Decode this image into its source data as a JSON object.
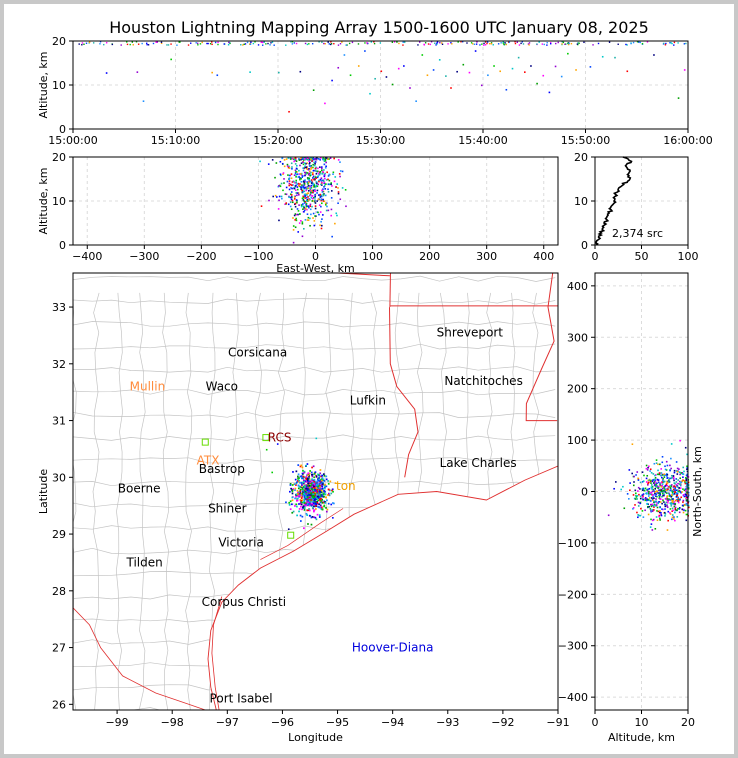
{
  "title": "Houston Lightning Mapping Array 1500-1600 UTC January 08, 2025",
  "chart_data": [
    {
      "panel": "time-altitude",
      "type": "scatter",
      "xlabel": "",
      "ylabel": "Altitude, km",
      "x_ticks": [
        "15:00:00",
        "15:10:00",
        "15:20:00",
        "15:30:00",
        "15:40:00",
        "15:50:00",
        "16:00:00"
      ],
      "x_range_minutes": [
        0,
        60
      ],
      "ylim": [
        0,
        20
      ],
      "y_ticks": [
        0,
        10,
        20
      ],
      "grid": true,
      "points": [
        {
          "t": 3.2,
          "alt": 12.9
        },
        {
          "t": 6.2,
          "alt": 13.1
        },
        {
          "t": 6.8,
          "alt": 6.5
        },
        {
          "t": 9.5,
          "alt": 16.0
        },
        {
          "t": 13.5,
          "alt": 13.0
        },
        {
          "t": 14.0,
          "alt": 12.4
        },
        {
          "t": 17.2,
          "alt": 13.1
        },
        {
          "t": 20.0,
          "alt": 13.0
        },
        {
          "t": 21.0,
          "alt": 4.1
        },
        {
          "t": 22.1,
          "alt": 13.2
        },
        {
          "t": 23.4,
          "alt": 9.0
        },
        {
          "t": 24.5,
          "alt": 6.0
        },
        {
          "t": 25.2,
          "alt": 11.2
        },
        {
          "t": 25.8,
          "alt": 14.1
        },
        {
          "t": 26.4,
          "alt": 17.0
        },
        {
          "t": 27.0,
          "alt": 12.4
        },
        {
          "t": 27.8,
          "alt": 14.5
        },
        {
          "t": 28.4,
          "alt": 17.9
        },
        {
          "t": 28.9,
          "alt": 8.2
        },
        {
          "t": 29.4,
          "alt": 11.6
        },
        {
          "t": 30.0,
          "alt": 13.3
        },
        {
          "t": 30.5,
          "alt": 12.0
        },
        {
          "t": 31.1,
          "alt": 10.3
        },
        {
          "t": 31.7,
          "alt": 13.9
        },
        {
          "t": 32.2,
          "alt": 14.5
        },
        {
          "t": 32.8,
          "alt": 9.5
        },
        {
          "t": 33.4,
          "alt": 6.5
        },
        {
          "t": 34.0,
          "alt": 17.0
        },
        {
          "t": 34.5,
          "alt": 12.4
        },
        {
          "t": 35.1,
          "alt": 13.6
        },
        {
          "t": 35.7,
          "alt": 15.9
        },
        {
          "t": 36.3,
          "alt": 12.2
        },
        {
          "t": 36.8,
          "alt": 9.5
        },
        {
          "t": 37.4,
          "alt": 13.2
        },
        {
          "t": 38.0,
          "alt": 14.8
        },
        {
          "t": 38.6,
          "alt": 13.0
        },
        {
          "t": 39.2,
          "alt": 17.9
        },
        {
          "t": 39.8,
          "alt": 10.1
        },
        {
          "t": 40.4,
          "alt": 12.4
        },
        {
          "t": 41.0,
          "alt": 14.5
        },
        {
          "t": 41.6,
          "alt": 13.3
        },
        {
          "t": 42.2,
          "alt": 9.1
        },
        {
          "t": 42.8,
          "alt": 13.9
        },
        {
          "t": 43.4,
          "alt": 16.4
        },
        {
          "t": 44.0,
          "alt": 13.1
        },
        {
          "t": 44.6,
          "alt": 14.5
        },
        {
          "t": 45.2,
          "alt": 10.5
        },
        {
          "t": 45.8,
          "alt": 12.3
        },
        {
          "t": 46.4,
          "alt": 8.5
        },
        {
          "t": 47.0,
          "alt": 14.4
        },
        {
          "t": 47.6,
          "alt": 12.1
        },
        {
          "t": 48.2,
          "alt": 17.3
        },
        {
          "t": 49.0,
          "alt": 13.6
        },
        {
          "t": 50.4,
          "alt": 14.3
        },
        {
          "t": 51.6,
          "alt": 16.6
        },
        {
          "t": 52.8,
          "alt": 16.4
        },
        {
          "t": 54.0,
          "alt": 13.3
        },
        {
          "t": 56.6,
          "alt": 17.0
        },
        {
          "t": 59.0,
          "alt": 7.2
        },
        {
          "t": 59.6,
          "alt": 13.6
        }
      ]
    },
    {
      "panel": "east-west-altitude",
      "type": "scatter",
      "xlabel": "East-West, km",
      "ylabel": "Altitude, km",
      "xlim": [
        -425,
        425
      ],
      "x_ticks": [
        -400,
        -300,
        -200,
        -100,
        0,
        100,
        200,
        300,
        400
      ],
      "ylim": [
        0,
        20
      ],
      "y_ticks": [
        0,
        10,
        20
      ],
      "grid": true,
      "cluster": {
        "x_center": -15,
        "x_spread": 30,
        "alt_center": 14,
        "alt_spread": 5,
        "count": 650
      }
    },
    {
      "panel": "altitude-histogram",
      "type": "line",
      "xlim": [
        0,
        100
      ],
      "x_ticks": [
        0,
        50,
        100
      ],
      "ylim": [
        0,
        20
      ],
      "y_ticks": [
        0,
        10,
        20
      ],
      "annotation": "2,374 src",
      "profile": [
        {
          "alt": 0.0,
          "n": 1
        },
        {
          "alt": 1.0,
          "n": 3
        },
        {
          "alt": 2.0,
          "n": 5
        },
        {
          "alt": 3.0,
          "n": 7
        },
        {
          "alt": 4.0,
          "n": 9
        },
        {
          "alt": 5.0,
          "n": 11
        },
        {
          "alt": 6.0,
          "n": 13
        },
        {
          "alt": 7.0,
          "n": 15
        },
        {
          "alt": 8.0,
          "n": 17
        },
        {
          "alt": 9.0,
          "n": 19
        },
        {
          "alt": 10.0,
          "n": 21
        },
        {
          "alt": 11.0,
          "n": 22
        },
        {
          "alt": 12.0,
          "n": 23
        },
        {
          "alt": 13.0,
          "n": 27
        },
        {
          "alt": 14.0,
          "n": 31
        },
        {
          "alt": 15.0,
          "n": 38
        },
        {
          "alt": 16.0,
          "n": 34
        },
        {
          "alt": 17.0,
          "n": 37
        },
        {
          "alt": 18.0,
          "n": 33
        },
        {
          "alt": 19.0,
          "n": 40
        },
        {
          "alt": 20.0,
          "n": 30
        }
      ]
    },
    {
      "panel": "plan-view-map",
      "type": "scatter",
      "xlabel": "Longitude",
      "ylabel": "Latitude",
      "xlim": [
        -99.8,
        -91.0
      ],
      "x_ticks": [
        -99,
        -98,
        -97,
        -96,
        -95,
        -94,
        -93,
        -92,
        -91
      ],
      "ylim": [
        25.9,
        33.6
      ],
      "y_ticks": [
        26,
        27,
        28,
        29,
        30,
        31,
        32,
        33
      ],
      "cluster": {
        "lon_center": -95.5,
        "lon_spread": 0.28,
        "lat_center": 29.75,
        "lat_spread": 0.28,
        "count": 800
      },
      "cities": [
        {
          "name": "Shreveport",
          "lon": -92.6,
          "lat": 32.55,
          "color": "#000000"
        },
        {
          "name": "Corsicana",
          "lon": -96.45,
          "lat": 32.2,
          "color": "#000000"
        },
        {
          "name": "Mullin",
          "lon": -98.45,
          "lat": 31.6,
          "color": "#ff8c3c"
        },
        {
          "name": "Waco",
          "lon": -97.1,
          "lat": 31.6,
          "color": "#000000"
        },
        {
          "name": "Natchitoches",
          "lon": -92.35,
          "lat": 31.7,
          "color": "#000000"
        },
        {
          "name": "Lufkin",
          "lon": -94.45,
          "lat": 31.35,
          "color": "#000000"
        },
        {
          "name": "RCS",
          "lon": -96.05,
          "lat": 30.7,
          "color": "#8b0000"
        },
        {
          "name": "ATX",
          "lon": -97.35,
          "lat": 30.3,
          "color": "#ff8c3c"
        },
        {
          "name": "Bastrop",
          "lon": -97.1,
          "lat": 30.15,
          "color": "#000000"
        },
        {
          "name": "Lake Charles",
          "lon": -92.45,
          "lat": 30.25,
          "color": "#000000"
        },
        {
          "name": "Boerne",
          "lon": -98.6,
          "lat": 29.8,
          "color": "#000000"
        },
        {
          "name": "ton",
          "lon": -94.85,
          "lat": 29.85,
          "color": "#f0a000"
        },
        {
          "name": "Shiner",
          "lon": -97.0,
          "lat": 29.45,
          "color": "#000000"
        },
        {
          "name": "Victoria",
          "lon": -96.75,
          "lat": 28.85,
          "color": "#000000"
        },
        {
          "name": "Tilden",
          "lon": -98.5,
          "lat": 28.5,
          "color": "#000000"
        },
        {
          "name": "Corpus Christi",
          "lon": -96.7,
          "lat": 27.8,
          "color": "#000000"
        },
        {
          "name": "Hoover-Diana",
          "lon": -94.0,
          "lat": 27.0,
          "color": "#0000dd"
        },
        {
          "name": "Port Isabel",
          "lon": -96.75,
          "lat": 26.1,
          "color": "#000000"
        }
      ]
    },
    {
      "panel": "north-south-altitude",
      "type": "scatter",
      "xlabel": "Altitude, km",
      "ylabel": "North-South, km",
      "xlim": [
        0,
        20
      ],
      "x_ticks": [
        0,
        10,
        20
      ],
      "ylim": [
        -425,
        425
      ],
      "y_ticks": [
        -400,
        -300,
        -200,
        -100,
        0,
        100,
        200,
        300,
        400
      ],
      "grid": true,
      "cluster": {
        "alt_center": 15,
        "alt_spread": 4,
        "ns_center": 0,
        "ns_spread": 35,
        "count": 650
      }
    }
  ],
  "palette": [
    "#0000ff",
    "#0044ff",
    "#00a000",
    "#00cc00",
    "#ff0000",
    "#9400d3",
    "#00c8c8",
    "#ff00ff",
    "#ffa500",
    "#000080",
    "#1e90ff",
    "#20b2aa"
  ]
}
